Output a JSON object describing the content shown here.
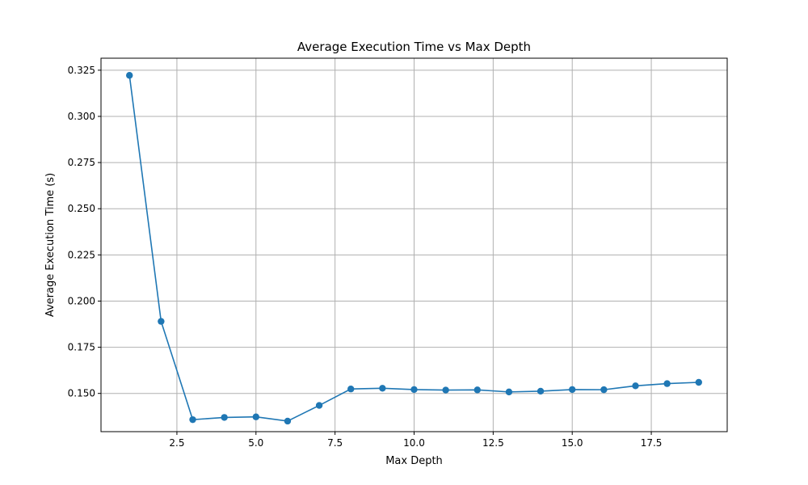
{
  "chart_data": {
    "type": "line",
    "title": "Average Execution Time vs Max Depth",
    "xlabel": "Max Depth",
    "ylabel": "Average Execution Time (s)",
    "xlim": [
      0.1,
      19.9
    ],
    "ylim": [
      0.1293,
      0.3315
    ],
    "x_ticks": [
      2.5,
      5.0,
      7.5,
      10.0,
      12.5,
      15.0,
      17.5
    ],
    "x_tick_labels": [
      "2.5",
      "5.0",
      "7.5",
      "10.0",
      "12.5",
      "15.0",
      "17.5"
    ],
    "y_ticks": [
      0.15,
      0.175,
      0.2,
      0.225,
      0.25,
      0.275,
      0.3,
      0.325
    ],
    "y_tick_labels": [
      "0.150",
      "0.175",
      "0.200",
      "0.225",
      "0.250",
      "0.275",
      "0.300",
      "0.325"
    ],
    "grid": true,
    "color": "#1f77b4",
    "series": [
      {
        "x": [
          1,
          2,
          3,
          4,
          5,
          6,
          7,
          8,
          9,
          10,
          11,
          12,
          13,
          14,
          15,
          16,
          17,
          18,
          19
        ],
        "values": [
          0.3222,
          0.189,
          0.1358,
          0.137,
          0.1373,
          0.135,
          0.1435,
          0.1524,
          0.1528,
          0.1521,
          0.1518,
          0.1519,
          0.1508,
          0.1512,
          0.1521,
          0.152,
          0.1541,
          0.1553,
          0.156
        ]
      }
    ]
  }
}
